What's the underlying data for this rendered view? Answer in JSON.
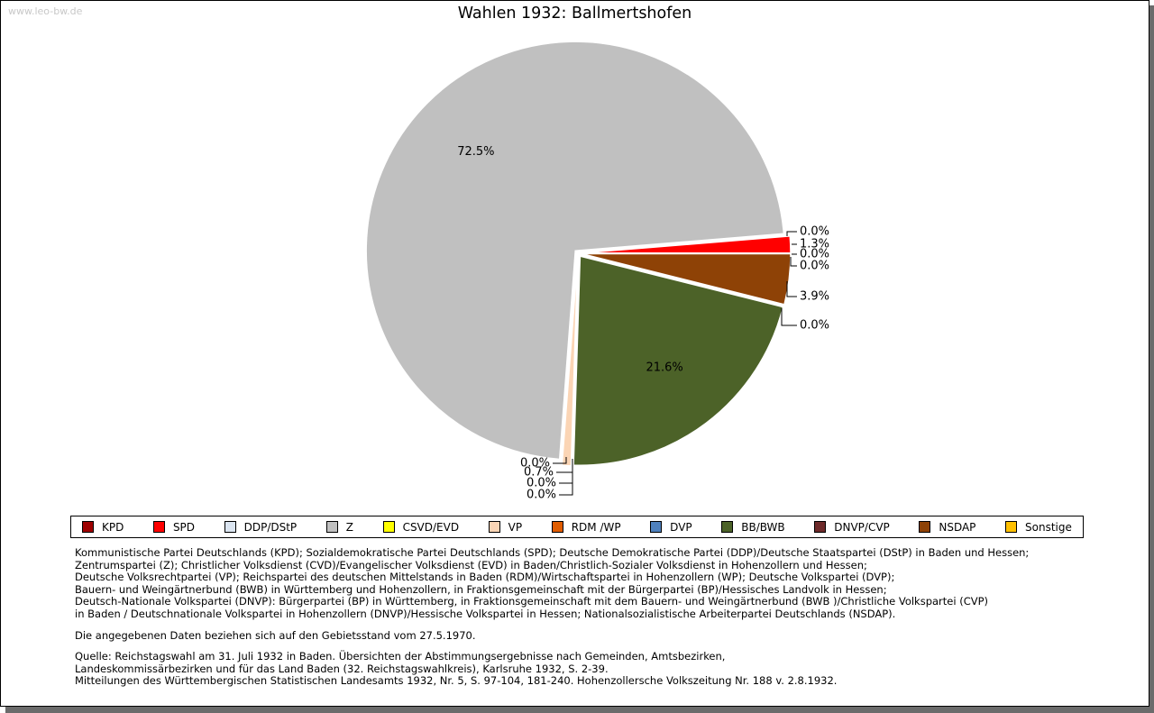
{
  "watermark": "www.leo-bw.de",
  "title": "Wahlen 1932: Ballmertshofen",
  "chart_data": {
    "type": "pie",
    "title": "Wahlen 1932: Ballmertshofen",
    "unit": "percent",
    "start_angle_deg_from_east": 0,
    "direction": "counterclockwise",
    "legend_position": "bottom",
    "parties": [
      {
        "name": "KPD",
        "value": 0.0,
        "color": "#9e0000"
      },
      {
        "name": "SPD",
        "value": 1.3,
        "color": "#ff0000"
      },
      {
        "name": "DDP/DStP",
        "value": 0.0,
        "color": "#dbe5f1"
      },
      {
        "name": "Z",
        "value": 72.5,
        "color": "#c0c0c0"
      },
      {
        "name": "CSVD/EVD",
        "value": 0.0,
        "color": "#ffff00"
      },
      {
        "name": "VP",
        "value": 0.7,
        "color": "#fbd5b5"
      },
      {
        "name": "RDM /WP",
        "value": 0.0,
        "color": "#e05c00"
      },
      {
        "name": "DVP",
        "value": 0.0,
        "color": "#4f81bd"
      },
      {
        "name": "BB/BWB",
        "value": 21.6,
        "color": "#4c6228"
      },
      {
        "name": "DNVP/CVP",
        "value": 0.0,
        "color": "#6e2a2a"
      },
      {
        "name": "NSDAP",
        "value": 3.9,
        "color": "#8e4206"
      },
      {
        "name": "Sonstige",
        "value": 0.0,
        "color": "#ffc000"
      }
    ]
  },
  "footnotes": {
    "party_definitions": [
      "Kommunistische Partei Deutschlands (KPD); Sozialdemokratische Partei Deutschlands (SPD); Deutsche Demokratische Partei (DDP)/Deutsche Staatspartei (DStP) in Baden und Hessen;",
      "Zentrumspartei (Z); Christlicher Volksdienst (CVD)/Evangelischer Volksdienst (EVD) in Baden/Christlich-Sozialer Volksdienst in Hohenzollern und Hessen;",
      "Deutsche Volksrechtpartei (VP); Reichspartei des deutschen Mittelstands in Baden (RDM)/Wirtschaftspartei in Hohenzollern (WP); Deutsche Volkspartei (DVP);",
      "Bauern- und Weingärtnerbund (BWB) in Württemberg und Hohenzollern, in Fraktionsgemeinschaft mit der Bürgerpartei (BP)/Hessisches Landvolk in Hessen;",
      "Deutsch-Nationale Volkspartei (DNVP): Bürgerpartei (BP) in Württemberg, in Fraktionsgemeinschaft mit dem Bauern- und Weingärtnerbund (BWB )/Christliche Volkspartei (CVP)",
      "in Baden / Deutschnationale Volkspartei in Hohenzollern (DNVP)/Hessische Volkspartei in Hessen; Nationalsozialistische Arbeiterpartei Deutschlands (NSDAP)."
    ],
    "territory_note": "Die angegebenen Daten beziehen sich auf den Gebietsstand vom 27.5.1970.",
    "source_lines": [
      "Quelle: Reichstagswahl am 31. Juli 1932 in Baden. Übersichten der Abstimmungsergebnisse nach Gemeinden, Amtsbezirken,",
      "Landeskommissärbezirken und für das Land Baden (32. Reichstagswahlkreis), Karlsruhe 1932, S. 2-39.",
      "Mitteilungen des Württembergischen Statistischen Landesamts 1932, Nr. 5, S. 97-104, 181-240. Hohenzollersche Volkszeitung Nr. 188 v. 2.8.1932."
    ]
  }
}
